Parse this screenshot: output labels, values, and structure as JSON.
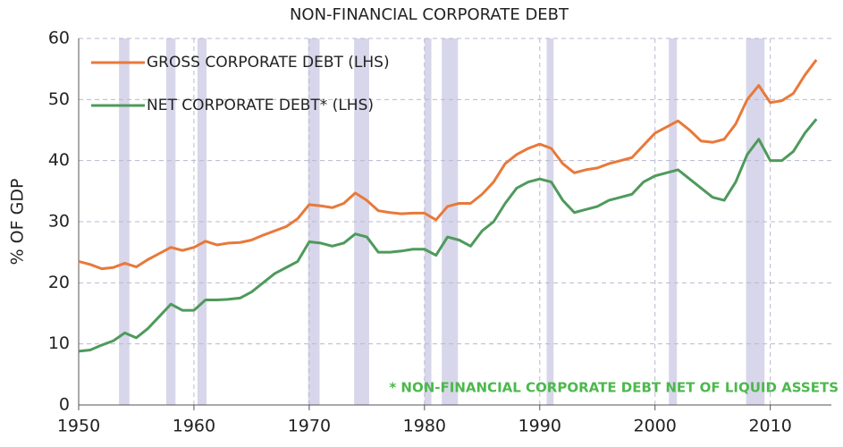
{
  "chart_data": {
    "type": "line",
    "title": "NON-FINANCIAL CORPORATE DEBT",
    "y_label": "% OF GDP",
    "annotation": "* NON-FINANCIAL CORPORATE DEBT NET OF LIQUID ASSETS",
    "annotation_color": "#4cb84c",
    "x": [
      1950,
      1951,
      1952,
      1953,
      1954,
      1955,
      1956,
      1957,
      1958,
      1959,
      1960,
      1961,
      1962,
      1963,
      1964,
      1965,
      1966,
      1967,
      1968,
      1969,
      1970,
      1971,
      1972,
      1973,
      1974,
      1975,
      1976,
      1977,
      1978,
      1979,
      1980,
      1981,
      1982,
      1983,
      1984,
      1985,
      1986,
      1987,
      1988,
      1989,
      1990,
      1991,
      1992,
      1993,
      1994,
      1995,
      1996,
      1997,
      1998,
      1999,
      2000,
      2001,
      2002,
      2003,
      2004,
      2005,
      2006,
      2007,
      2008,
      2009,
      2010,
      2011,
      2012,
      2013,
      2014
    ],
    "series": [
      {
        "name": "GROSS CORPORATE DEBT (LHS)",
        "color": "#e8793a",
        "values": [
          23.5,
          23,
          22.3,
          22.5,
          23.2,
          22.6,
          23.8,
          24.8,
          25.8,
          25.3,
          25.8,
          26.8,
          26.2,
          26.5,
          26.6,
          27,
          27.8,
          28.5,
          29.2,
          30.5,
          32.8,
          32.6,
          32.3,
          33,
          34.7,
          33.5,
          31.8,
          31.5,
          31.3,
          31.4,
          31.4,
          30.3,
          32.5,
          33,
          33,
          34.5,
          36.5,
          39.5,
          41,
          42,
          42.7,
          42,
          39.5,
          38,
          38.5,
          38.8,
          39.5,
          40,
          40.5,
          42.5,
          44.5,
          45.5,
          46.5,
          45,
          43.2,
          43,
          43.5,
          46,
          50,
          52.3,
          49.5,
          49.8,
          51,
          54,
          56.5
        ]
      },
      {
        "name": "NET CORPORATE DEBT* (LHS)",
        "color": "#4e9a5c",
        "values": [
          8.8,
          9,
          9.8,
          10.5,
          11.8,
          11,
          12.5,
          14.5,
          16.5,
          15.5,
          15.5,
          17.2,
          17.2,
          17.3,
          17.5,
          18.5,
          20,
          21.5,
          22.5,
          23.5,
          26.7,
          26.5,
          26,
          26.5,
          28,
          27.5,
          25,
          25,
          25.2,
          25.5,
          25.5,
          24.5,
          27.5,
          27,
          26,
          28.5,
          30,
          33,
          35.5,
          36.5,
          37,
          36.5,
          33.5,
          31.5,
          32,
          32.5,
          33.5,
          34,
          34.5,
          36.5,
          37.5,
          38,
          38.5,
          37,
          35.5,
          34,
          33.5,
          36.5,
          41,
          43.5,
          40,
          40,
          41.5,
          44.5,
          46.8
        ]
      }
    ],
    "shaded_periods": [
      [
        1953.5,
        1954.4
      ],
      [
        1957.6,
        1958.4
      ],
      [
        1960.3,
        1961.1
      ],
      [
        1969.9,
        1970.9
      ],
      [
        1973.9,
        1975.2
      ],
      [
        1980,
        1980.6
      ],
      [
        1981.5,
        1982.9
      ],
      [
        1990.6,
        1991.2
      ],
      [
        2001.2,
        2001.9
      ],
      [
        2007.9,
        2009.5
      ]
    ],
    "shade_color": "#d8d6ea",
    "xlim": [
      1950,
      2015.3
    ],
    "xticks": [
      1950,
      1960,
      1970,
      1980,
      1990,
      2000,
      2010
    ],
    "ylim": [
      0,
      60
    ],
    "yticks": [
      0,
      10,
      20,
      30,
      40,
      50,
      60
    ],
    "grid": true,
    "legend": "upper left"
  }
}
